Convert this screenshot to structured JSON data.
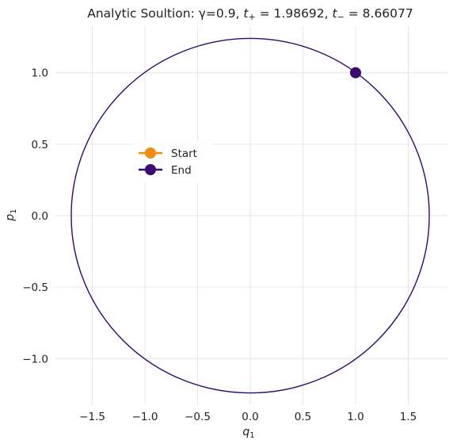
{
  "chart_data": {
    "type": "line",
    "title": "Analytic Soultion: γ=0.9, t₊ = 1.98692, t₋ = 8.66077",
    "title_parts": {
      "prefix": "Analytic Soultion: γ=0.9, ",
      "t_plus_var": "t",
      "t_plus_sub": "+",
      "t_plus_value": " = 1.98692, ",
      "t_minus_var": "t",
      "t_minus_sub": "−",
      "t_minus_value": " = 8.66077"
    },
    "xlabel": {
      "var": "q",
      "sub": "1"
    },
    "ylabel": {
      "var": "p",
      "sub": "1"
    },
    "xlim": [
      -1.85,
      1.88
    ],
    "ylim": [
      -1.32,
      1.32
    ],
    "xticks": [
      -1.5,
      -1.0,
      -0.5,
      0.0,
      0.5,
      1.0,
      1.5
    ],
    "xtick_labels": [
      "−1.5",
      "−1.0",
      "−0.5",
      "0.0",
      "0.5",
      "1.0",
      "1.5"
    ],
    "yticks": [
      -1.0,
      -0.5,
      0.0,
      0.5,
      1.0
    ],
    "ytick_labels": [
      "−1.0",
      "−0.5",
      "0.0",
      "0.5",
      "1.0"
    ],
    "grid": true,
    "legend_placement": "center-left",
    "series": [
      {
        "kind": "trajectory-ellipse",
        "center": [
          0.0,
          0.0
        ],
        "semi_axis_q": 1.7,
        "semi_axis_p": 1.24,
        "color": "#2d0a6e"
      }
    ],
    "markers": [
      {
        "name": "Start",
        "q": 1.0,
        "p": 1.0,
        "color": "#f28c0f"
      },
      {
        "name": "End",
        "q": 1.0,
        "p": 1.0,
        "color": "#3d0a73"
      }
    ]
  }
}
